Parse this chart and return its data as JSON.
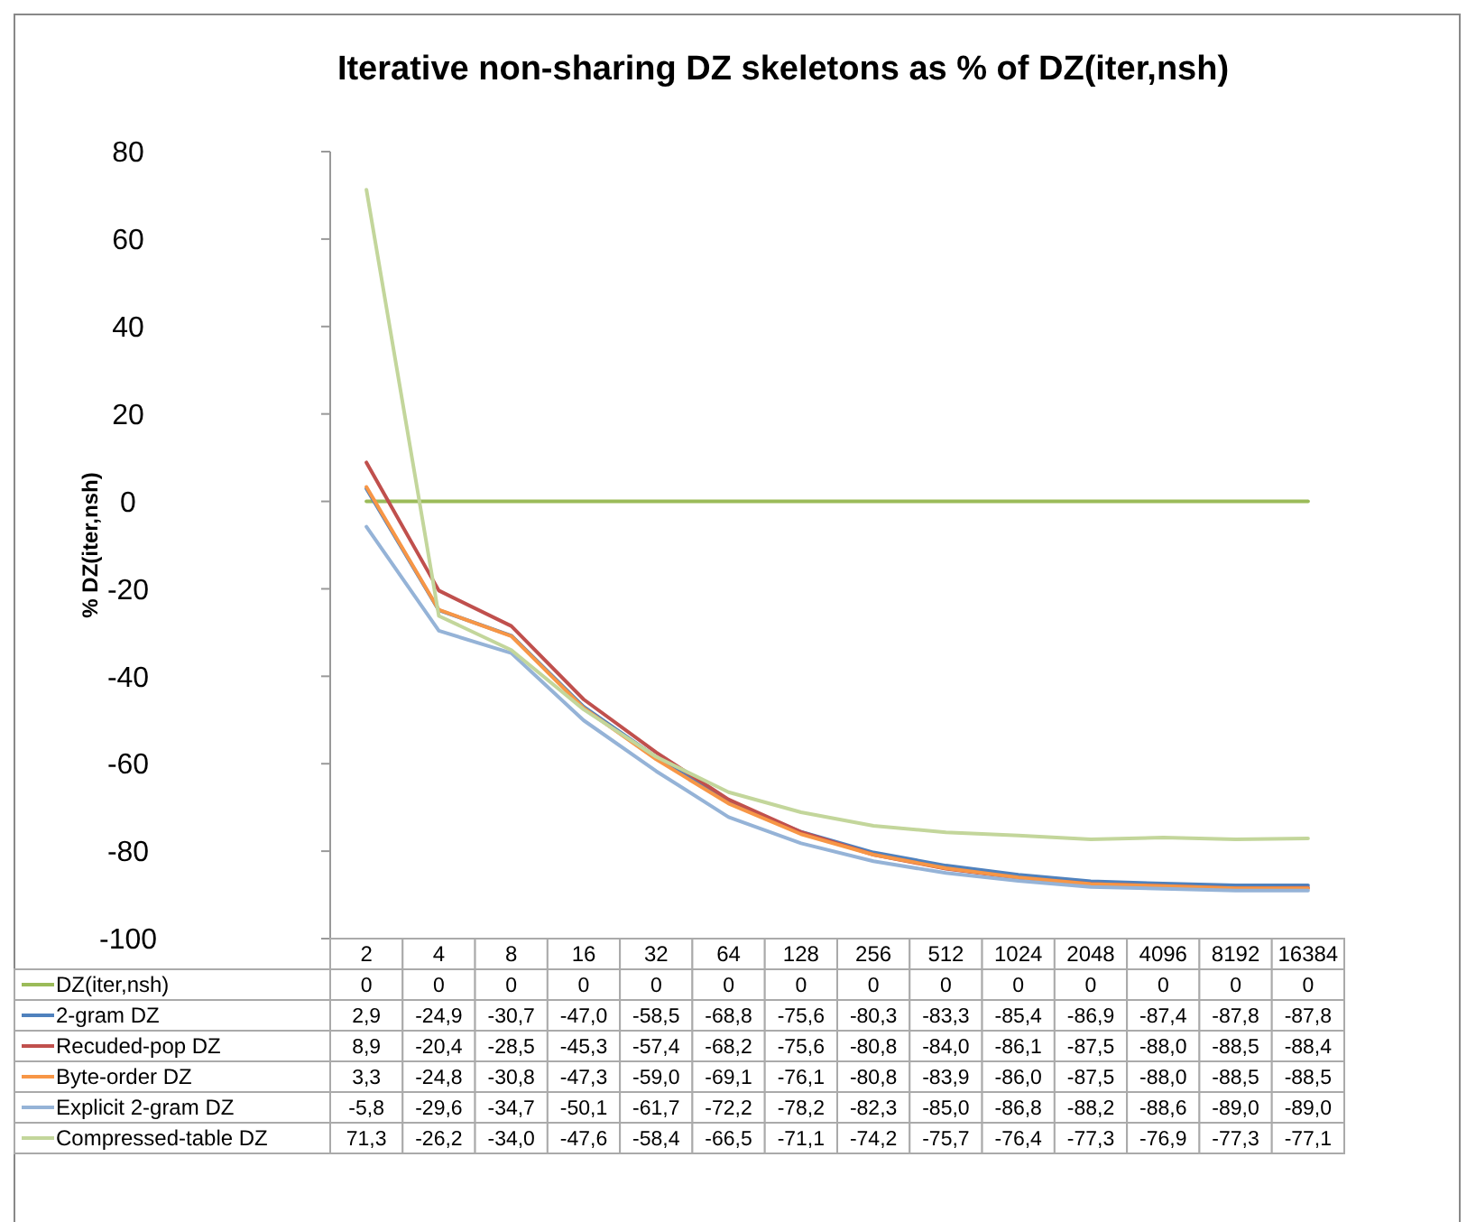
{
  "chart_data": {
    "type": "line",
    "title": "Iterative non-sharing DZ skeletons as % of DZ(iter,nsh)",
    "ylabel": "% DZ(iter,nsh)",
    "categories": [
      "2",
      "4",
      "8",
      "16",
      "32",
      "64",
      "128",
      "256",
      "512",
      "1024",
      "2048",
      "4096",
      "8192",
      "16384"
    ],
    "ylim": [
      -100,
      80
    ],
    "yticks": [
      -100,
      -80,
      -60,
      -40,
      -20,
      0,
      20,
      40,
      60,
      80
    ],
    "legend": "bottom",
    "grid": false,
    "series": [
      {
        "name": "DZ(iter,nsh)",
        "color": "#9bbb59",
        "values": [
          0,
          0,
          0,
          0,
          0,
          0,
          0,
          0,
          0,
          0,
          0,
          0,
          0,
          0
        ],
        "value_labels": [
          "0",
          "0",
          "0",
          "0",
          "0",
          "0",
          "0",
          "0",
          "0",
          "0",
          "0",
          "0",
          "0",
          "0"
        ]
      },
      {
        "name": "2-gram DZ",
        "color": "#4f81bd",
        "values": [
          2.9,
          -24.9,
          -30.7,
          -47.0,
          -58.5,
          -68.8,
          -75.6,
          -80.3,
          -83.3,
          -85.4,
          -86.9,
          -87.4,
          -87.8,
          -87.8
        ],
        "value_labels": [
          "2,9",
          "-24,9",
          "-30,7",
          "-47,0",
          "-58,5",
          "-68,8",
          "-75,6",
          "-80,3",
          "-83,3",
          "-85,4",
          "-86,9",
          "-87,4",
          "-87,8",
          "-87,8"
        ]
      },
      {
        "name": "Recuded-pop DZ",
        "color": "#c0504d",
        "values": [
          8.9,
          -20.4,
          -28.5,
          -45.3,
          -57.4,
          -68.2,
          -75.6,
          -80.8,
          -84.0,
          -86.1,
          -87.5,
          -88.0,
          -88.5,
          -88.4
        ],
        "value_labels": [
          "8,9",
          "-20,4",
          "-28,5",
          "-45,3",
          "-57,4",
          "-68,2",
          "-75,6",
          "-80,8",
          "-84,0",
          "-86,1",
          "-87,5",
          "-88,0",
          "-88,5",
          "-88,4"
        ]
      },
      {
        "name": "Byte-order DZ",
        "color": "#f79646",
        "values": [
          3.3,
          -24.8,
          -30.8,
          -47.3,
          -59.0,
          -69.1,
          -76.1,
          -80.8,
          -83.9,
          -86.0,
          -87.5,
          -88.0,
          -88.5,
          -88.5
        ],
        "value_labels": [
          "3,3",
          "-24,8",
          "-30,8",
          "-47,3",
          "-59,0",
          "-69,1",
          "-76,1",
          "-80,8",
          "-83,9",
          "-86,0",
          "-87,5",
          "-88,0",
          "-88,5",
          "-88,5"
        ]
      },
      {
        "name": "Explicit 2-gram DZ",
        "color": "#95b3d7",
        "values": [
          -5.8,
          -29.6,
          -34.7,
          -50.1,
          -61.7,
          -72.2,
          -78.2,
          -82.3,
          -85.0,
          -86.8,
          -88.2,
          -88.6,
          -89.0,
          -89.0
        ],
        "value_labels": [
          "-5,8",
          "-29,6",
          "-34,7",
          "-50,1",
          "-61,7",
          "-72,2",
          "-78,2",
          "-82,3",
          "-85,0",
          "-86,8",
          "-88,2",
          "-88,6",
          "-89,0",
          "-89,0"
        ]
      },
      {
        "name": "Compressed-table DZ",
        "color": "#c3d69b",
        "values": [
          71.3,
          -26.2,
          -34.0,
          -47.6,
          -58.4,
          -66.5,
          -71.1,
          -74.2,
          -75.7,
          -76.4,
          -77.3,
          -76.9,
          -77.3,
          -77.1
        ],
        "value_labels": [
          "71,3",
          "-26,2",
          "-34,0",
          "-47,6",
          "-58,4",
          "-66,5",
          "-71,1",
          "-74,2",
          "-75,7",
          "-76,4",
          "-77,3",
          "-76,9",
          "-77,3",
          "-77,1"
        ]
      }
    ]
  }
}
